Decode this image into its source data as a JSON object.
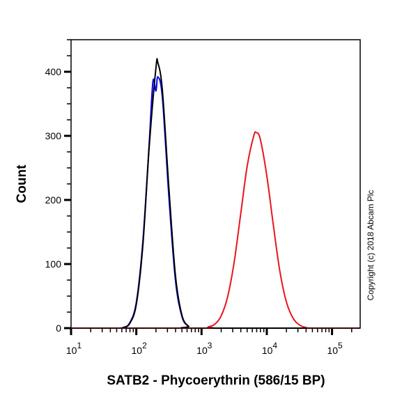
{
  "chart_data": {
    "type": "line",
    "title": "",
    "xlabel": "SATB2 - Phycoerythrin (586/15 BP)",
    "ylabel": "Count",
    "xscale": "log",
    "xlim": [
      10,
      270000
    ],
    "ylim": [
      0,
      450
    ],
    "x_ticks": [
      {
        "value": 10,
        "base": "10",
        "exp": "1"
      },
      {
        "value": 100,
        "base": "10",
        "exp": "2"
      },
      {
        "value": 1000,
        "base": "10",
        "exp": "3"
      },
      {
        "value": 10000,
        "base": "10",
        "exp": "4"
      },
      {
        "value": 100000,
        "base": "10",
        "exp": "5"
      }
    ],
    "y_ticks": [
      0,
      100,
      200,
      300,
      400
    ],
    "grid": false,
    "annotation": "Copyright (c) 2018 Abcam Plc",
    "series": [
      {
        "color": "#0000ff",
        "x": [
          10,
          50,
          63,
          79,
          100,
          126,
          158,
          180,
          200,
          214,
          251,
          316,
          398,
          501,
          631,
          794,
          270000
        ],
        "y": [
          0,
          0,
          1,
          8,
          40,
          135,
          290,
          385,
          370,
          392,
          360,
          205,
          75,
          18,
          3,
          0,
          0
        ]
      },
      {
        "color": "#000000",
        "x": [
          10,
          50,
          63,
          79,
          100,
          126,
          158,
          200,
          214,
          251,
          316,
          398,
          501,
          631,
          794,
          270000
        ],
        "y": [
          0,
          0,
          1,
          7,
          37,
          129,
          284,
          406,
          414,
          371,
          218,
          82,
          20,
          3,
          0,
          0
        ]
      },
      {
        "color": "#e8141c",
        "x": [
          10,
          1000,
          1259,
          1585,
          1995,
          2512,
          3162,
          3981,
          5012,
          6310,
          6918,
          7943,
          10000,
          12589,
          15849,
          19953,
          25119,
          31623,
          39811,
          50119,
          270000
        ],
        "y": [
          0,
          0,
          2,
          6,
          19,
          49,
          103,
          178,
          253,
          300,
          305,
          295,
          238,
          161,
          89,
          41,
          16,
          5,
          1,
          0,
          0
        ]
      }
    ]
  }
}
